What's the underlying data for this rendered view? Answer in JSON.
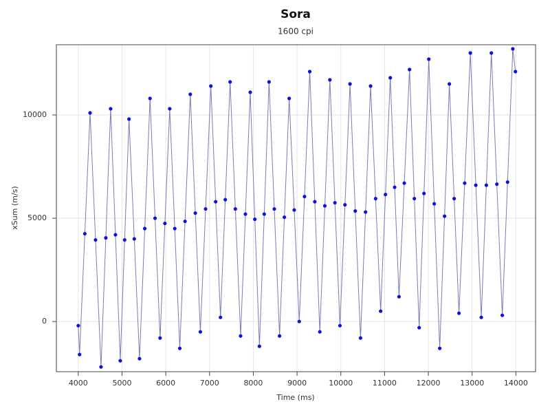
{
  "chart_data": {
    "type": "scatter-line",
    "title": "Sora",
    "subtitle": "1600 cpi",
    "x_label": "Time (ms)",
    "y_label": "xSum (m/s)",
    "xlim": [
      3500,
      14450
    ],
    "ylim": [
      -2430,
      13400
    ],
    "xticks": [
      4000,
      5000,
      6000,
      7000,
      8000,
      9000,
      10000,
      11000,
      12000,
      13000,
      14000
    ],
    "yticks": [
      0,
      5000,
      10000
    ],
    "grid": true,
    "series": [
      {
        "color": "#1010e0",
        "x": [
          4000,
          4030,
          4150,
          4270,
          4395,
          4520,
          4630,
          4740,
          4850,
          4960,
          5060,
          5160,
          5280,
          5400,
          5520,
          5640,
          5755,
          5870,
          5980,
          6090,
          6205,
          6320,
          6440,
          6560,
          6675,
          6790,
          6910,
          7030,
          7140,
          7250,
          7360,
          7470,
          7590,
          7710,
          7820,
          7930,
          8035,
          8140,
          8250,
          8360,
          8480,
          8600,
          8710,
          8820,
          8935,
          9050,
          9170,
          9290,
          9405,
          9520,
          9635,
          9750,
          9865,
          9980,
          10095,
          10210,
          10330,
          10450,
          10565,
          10680,
          10795,
          10910,
          11020,
          11130,
          11230,
          11330,
          11450,
          11570,
          11680,
          11790,
          11900,
          12010,
          12135,
          12260,
          12370,
          12480,
          12590,
          12700,
          12830,
          12960,
          13085,
          13210,
          13325,
          13440,
          13565,
          13690,
          13810,
          13930,
          13990
        ],
        "values": [
          -200,
          -1600,
          4250,
          10100,
          3950,
          -2200,
          4050,
          10300,
          4200,
          -1900,
          3950,
          9800,
          4000,
          -1800,
          4500,
          10800,
          5000,
          -800,
          4750,
          10300,
          4500,
          -1300,
          4850,
          11000,
          5250,
          -500,
          5450,
          11400,
          5800,
          200,
          5900,
          11600,
          5450,
          -700,
          5200,
          11100,
          4950,
          -1200,
          5200,
          11600,
          5450,
          -700,
          5050,
          10800,
          5400,
          0,
          6050,
          12100,
          5800,
          -500,
          5600,
          11700,
          5750,
          -200,
          5650,
          11500,
          5350,
          -800,
          5300,
          11400,
          5950,
          500,
          6150,
          11800,
          6500,
          1200,
          6700,
          12200,
          5950,
          -300,
          6200,
          12700,
          5700,
          -1300,
          5100,
          11500,
          5950,
          400,
          6700,
          13000,
          6600,
          200,
          6600,
          13000,
          6650,
          300,
          6750,
          13200,
          12100
        ]
      }
    ]
  }
}
